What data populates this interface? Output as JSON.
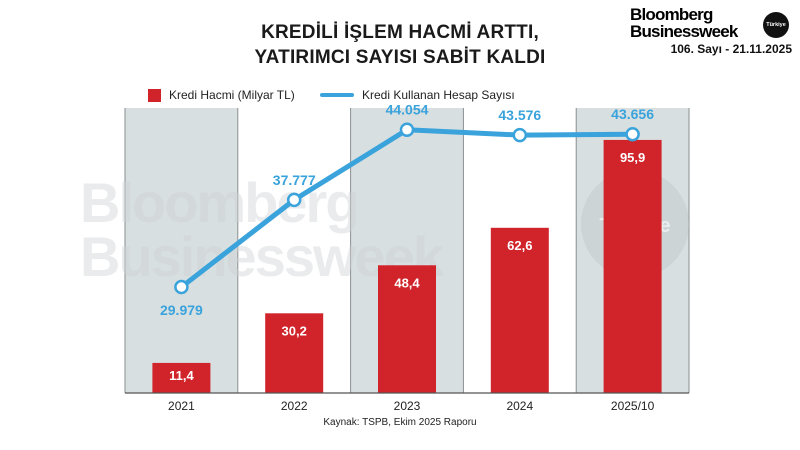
{
  "header": {
    "title_line1": "KREDİLİ İŞLEM HACMİ ARTTI,",
    "title_line2": "YATIRIMCI SAYISI SABİT KALDI"
  },
  "brand": {
    "line1": "Bloomberg",
    "line2": "Businessweek",
    "edition": "Türkiye",
    "issue": "106. Sayı - 21.11.2025"
  },
  "watermark": {
    "line1": "Bloomberg",
    "line2": "Businessweek",
    "edition": "Türkiye"
  },
  "source": "Kaynak: TSPB, Ekim 2025 Raporu",
  "colors": {
    "bar": "#d0232a",
    "line": "#3aa3db",
    "band_shaded": "#d8dfe1",
    "band_plain": "#ffffff",
    "label_on_bar": "#ffffff"
  },
  "chart_data": {
    "type": "bar",
    "categories": [
      "2021",
      "2022",
      "2023",
      "2024",
      "2025/10"
    ],
    "series": [
      {
        "name": "Kredi Hacmi (Milyar TL)",
        "type": "bar",
        "values": [
          11.4,
          30.2,
          48.4,
          62.6,
          95.9
        ],
        "labels": [
          "11,4",
          "30,2",
          "48,4",
          "62,6",
          "95,9"
        ]
      },
      {
        "name": "Kredi Kullanan Hesap Sayısı",
        "type": "line",
        "values": [
          29979,
          37777,
          44054,
          43576,
          43656
        ],
        "labels": [
          "29.979",
          "37.777",
          "44.054",
          "43.576",
          "43.656"
        ]
      }
    ],
    "bar_ylim": [
      0,
      108
    ],
    "line_ylim": [
      20500,
      46000
    ],
    "shaded_columns": [
      true,
      false,
      true,
      false,
      true
    ],
    "legend_position": "top-left",
    "grid": false
  }
}
